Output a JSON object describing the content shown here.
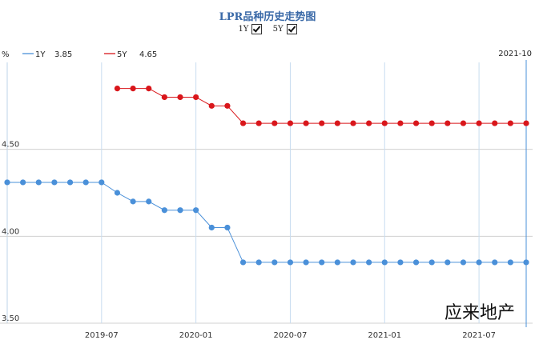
{
  "title": "LPR品种历史走势图",
  "toggles": [
    {
      "label": "1Y",
      "checked": true
    },
    {
      "label": "5Y",
      "checked": true
    }
  ],
  "unit_label": "%",
  "date_readout": "2021-10",
  "watermark": "应来地产",
  "chart_data": {
    "type": "line",
    "grid": true,
    "legend_position": "top-left",
    "x": [
      "2019-01",
      "2019-02",
      "2019-03",
      "2019-04",
      "2019-05",
      "2019-06",
      "2019-07",
      "2019-08",
      "2019-09",
      "2019-10",
      "2019-11",
      "2019-12",
      "2020-01",
      "2020-02",
      "2020-03",
      "2020-04",
      "2020-05",
      "2020-06",
      "2020-07",
      "2020-08",
      "2020-09",
      "2020-10",
      "2020-11",
      "2020-12",
      "2021-01",
      "2021-02",
      "2021-03",
      "2021-04",
      "2021-05",
      "2021-06",
      "2021-07",
      "2021-08",
      "2021-09",
      "2021-10"
    ],
    "xticks": [
      "2019-07",
      "2020-01",
      "2020-07",
      "2021-01",
      "2021-07"
    ],
    "yticks": [
      "3.50",
      "4.00",
      "4.50"
    ],
    "ylim": [
      3.5,
      5.0
    ],
    "series": [
      {
        "name": "1Y",
        "latest": "3.85",
        "color": "#4a90d9",
        "values": [
          4.31,
          4.31,
          4.31,
          4.31,
          4.31,
          4.31,
          4.31,
          4.25,
          4.2,
          4.2,
          4.15,
          4.15,
          4.15,
          4.05,
          4.05,
          3.85,
          3.85,
          3.85,
          3.85,
          3.85,
          3.85,
          3.85,
          3.85,
          3.85,
          3.85,
          3.85,
          3.85,
          3.85,
          3.85,
          3.85,
          3.85,
          3.85,
          3.85,
          3.85
        ]
      },
      {
        "name": "5Y",
        "latest": "4.65",
        "color": "#d9161b",
        "values": [
          null,
          null,
          null,
          null,
          null,
          null,
          null,
          4.85,
          4.85,
          4.85,
          4.8,
          4.8,
          4.8,
          4.75,
          4.75,
          4.65,
          4.65,
          4.65,
          4.65,
          4.65,
          4.65,
          4.65,
          4.65,
          4.65,
          4.65,
          4.65,
          4.65,
          4.65,
          4.65,
          4.65,
          4.65,
          4.65,
          4.65,
          4.65
        ]
      }
    ]
  }
}
